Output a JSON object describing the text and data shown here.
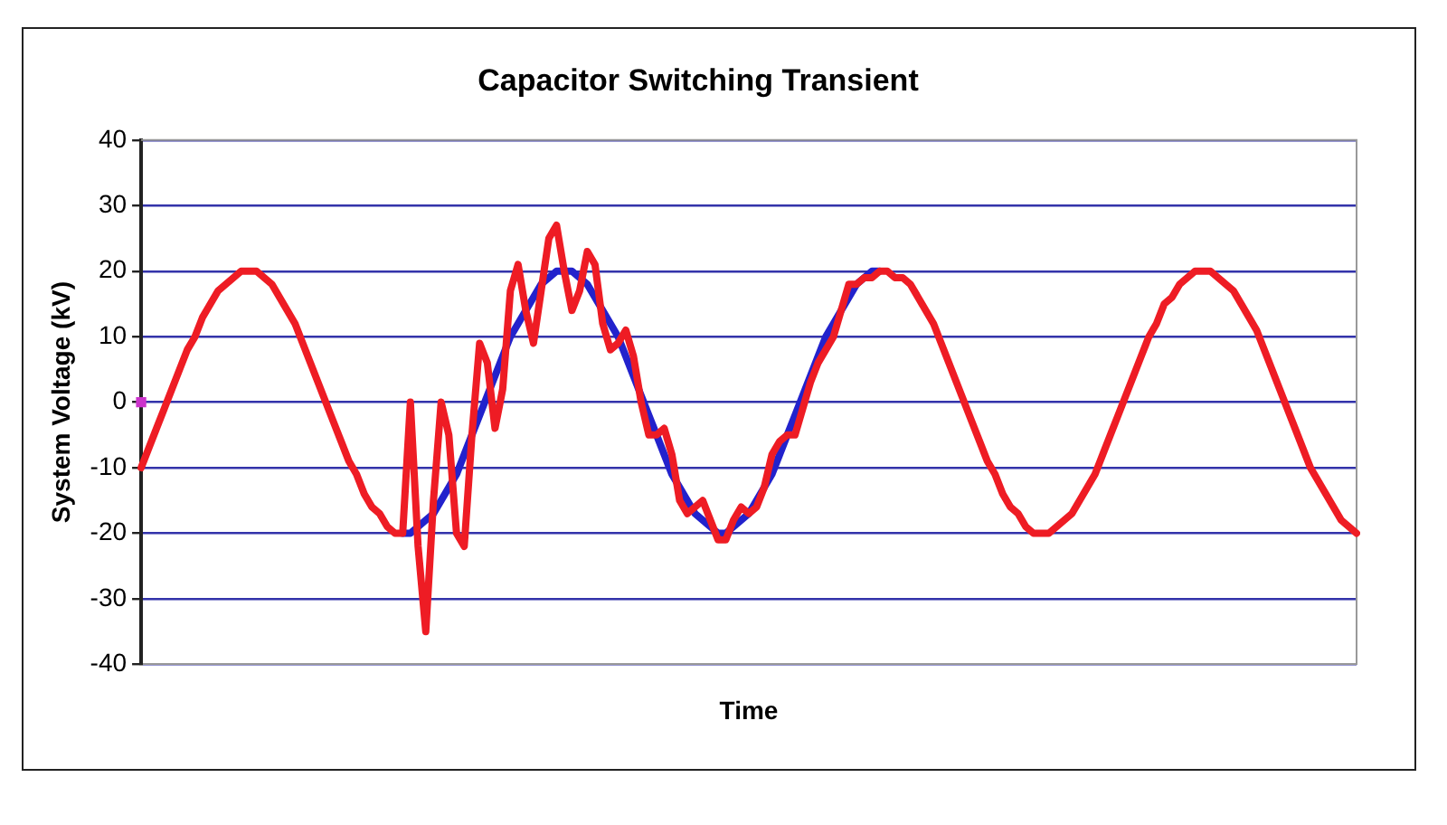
{
  "chart_data": {
    "type": "line",
    "title": "Capacitor Switching Transient",
    "xlabel": "Time",
    "ylabel": "System Voltage (kV)",
    "categories": [
      null,
      null,
      null,
      null,
      null,
      null,
      null,
      null,
      null,
      null,
      null,
      null,
      null,
      null,
      null,
      null,
      null,
      null,
      null,
      null,
      null,
      null,
      null,
      null,
      null,
      null,
      null,
      null,
      null,
      null,
      null,
      null,
      null,
      null,
      null,
      null,
      null,
      null,
      null,
      null,
      null,
      null,
      null,
      null,
      null,
      null,
      null,
      null,
      null,
      null,
      null,
      null,
      null,
      null,
      null,
      null,
      null,
      null,
      null,
      null,
      null,
      null,
      null,
      null,
      null,
      null,
      null,
      null,
      null,
      null,
      null,
      null,
      null,
      null,
      null,
      null,
      null,
      null,
      null,
      null,
      null,
      null,
      null,
      null,
      null,
      null,
      null,
      null,
      null,
      null,
      null,
      null,
      null,
      null,
      null,
      null,
      null,
      null,
      null,
      null,
      null,
      null,
      null,
      null,
      null,
      null,
      null,
      null,
      null,
      null,
      null,
      null,
      null,
      null,
      null,
      null,
      null,
      null,
      null,
      null,
      null,
      null,
      null,
      null,
      null,
      null,
      null,
      null,
      null,
      null,
      null,
      null,
      null,
      null,
      null,
      null,
      null,
      null,
      null,
      null,
      null,
      null,
      null,
      null,
      null,
      null,
      null,
      null,
      null,
      null,
      null,
      null,
      null,
      null,
      null,
      null,
      null,
      null,
      null
    ],
    "series": [
      {
        "color": "#ee1c24",
        "values": [
          -10,
          -7,
          -4,
          -1,
          2,
          5,
          8,
          10,
          13,
          15,
          17,
          18,
          19,
          20,
          20,
          20,
          19,
          18,
          16,
          14,
          12,
          9,
          6,
          3,
          0,
          -3,
          -6,
          -9,
          -11,
          -14,
          -16,
          -17,
          -19,
          -20,
          -20,
          0,
          -22,
          -35,
          -15,
          0,
          -5,
          -20,
          -22,
          -5,
          9,
          6,
          -4,
          2,
          17,
          21,
          14,
          9,
          17,
          25,
          27,
          20,
          14,
          17,
          23,
          21,
          12,
          8,
          9,
          11,
          7,
          0,
          -5,
          -5,
          -4,
          -8,
          -15,
          -17,
          -16,
          -15,
          -18,
          -21,
          -21,
          -18,
          -16,
          -17,
          -16,
          -13,
          -8,
          -6,
          -5,
          -5,
          -1,
          3,
          6,
          8,
          10,
          14,
          18,
          18,
          19,
          19,
          20,
          20,
          19,
          19,
          18,
          16,
          14,
          12,
          9,
          6,
          3,
          0,
          -3,
          -6,
          -9,
          -11,
          -14,
          -16,
          -17,
          -19,
          -20,
          -20,
          -20,
          -19,
          -18,
          -17,
          -15,
          -13,
          -11,
          -8,
          -5,
          -2,
          1,
          4,
          7,
          10,
          12,
          15,
          16,
          18,
          19,
          20,
          20,
          20,
          19,
          18,
          17,
          15,
          13,
          11,
          8,
          5,
          2,
          -1,
          -4,
          -7,
          -10,
          -12,
          -14,
          -16,
          -18,
          -19,
          -20
        ]
      },
      {
        "color": "#2222cc",
        "values": [
          null,
          null,
          null,
          null,
          null,
          null,
          null,
          null,
          null,
          null,
          null,
          null,
          null,
          null,
          null,
          null,
          null,
          null,
          null,
          null,
          null,
          null,
          null,
          null,
          null,
          null,
          null,
          null,
          null,
          null,
          null,
          null,
          null,
          null,
          -20,
          -20,
          -19,
          -18,
          -17,
          -15,
          -13,
          -11,
          -8,
          -5,
          -2,
          1,
          4,
          7,
          10,
          12,
          14,
          16,
          18,
          19,
          20,
          20,
          20,
          19,
          18,
          16,
          14,
          12,
          10,
          7,
          4,
          1,
          -2,
          -5,
          -8,
          -11,
          -13,
          -15,
          -17,
          -18,
          -19,
          -20,
          -20,
          -19,
          -18,
          -17,
          -15,
          -13,
          -11,
          -8,
          -5,
          -2,
          1,
          4,
          7,
          10,
          12,
          14,
          16,
          18,
          19,
          20,
          20,
          null,
          null,
          null,
          null,
          null,
          null,
          null,
          null,
          null,
          null,
          null,
          null,
          null,
          null,
          null,
          null,
          null,
          null,
          null,
          null,
          null,
          null,
          null,
          null,
          null,
          null,
          null,
          null,
          null,
          null,
          null,
          null,
          null,
          null,
          null,
          null,
          null,
          null,
          null,
          null,
          null,
          null,
          null,
          null,
          null,
          null,
          null,
          null,
          null,
          null,
          null,
          null,
          null,
          null,
          null,
          null,
          null,
          null,
          null,
          null,
          null,
          null
        ]
      },
      {
        "type": "scatter",
        "marker": "square",
        "color": "#cc33cc",
        "values": [
          0,
          null,
          null,
          null,
          null,
          null,
          null,
          null,
          null,
          null,
          null,
          null,
          null,
          null,
          null,
          null,
          null,
          null,
          null,
          null,
          null,
          null,
          null,
          null,
          null,
          null,
          null,
          null,
          null,
          null,
          null,
          null,
          null,
          null,
          null,
          null,
          null,
          null,
          null,
          null,
          null,
          null,
          null,
          null,
          null,
          null,
          null,
          null,
          null,
          null,
          null,
          null,
          null,
          null,
          null,
          null,
          null,
          null,
          null,
          null,
          null,
          null,
          null,
          null,
          null,
          null,
          null,
          null,
          null,
          null,
          null,
          null,
          null,
          null,
          null,
          null,
          null,
          null,
          null,
          null,
          null,
          null,
          null,
          null,
          null,
          null,
          null,
          null,
          null,
          null,
          null,
          null,
          null,
          null,
          null,
          null,
          null,
          null,
          null,
          null,
          null,
          null,
          null,
          null,
          null,
          null,
          null,
          null,
          null,
          null,
          null,
          null,
          null,
          null,
          null,
          null,
          null,
          null,
          null,
          null,
          null,
          null,
          null,
          null,
          null,
          null,
          null,
          null,
          null,
          null,
          null,
          null,
          null,
          null,
          null,
          null,
          null,
          null,
          null,
          null,
          null,
          null,
          null,
          null,
          null,
          null,
          null,
          null,
          null,
          null,
          null,
          null,
          null,
          null,
          null,
          null,
          null,
          null,
          null
        ]
      }
    ],
    "ylim": [
      -40,
      40
    ],
    "yticks": [
      -40,
      -30,
      -20,
      -10,
      0,
      10,
      20,
      30,
      40
    ],
    "grid": "y",
    "legend": false,
    "marker": "none",
    "line_style": "solid",
    "tick_labels": "y"
  }
}
